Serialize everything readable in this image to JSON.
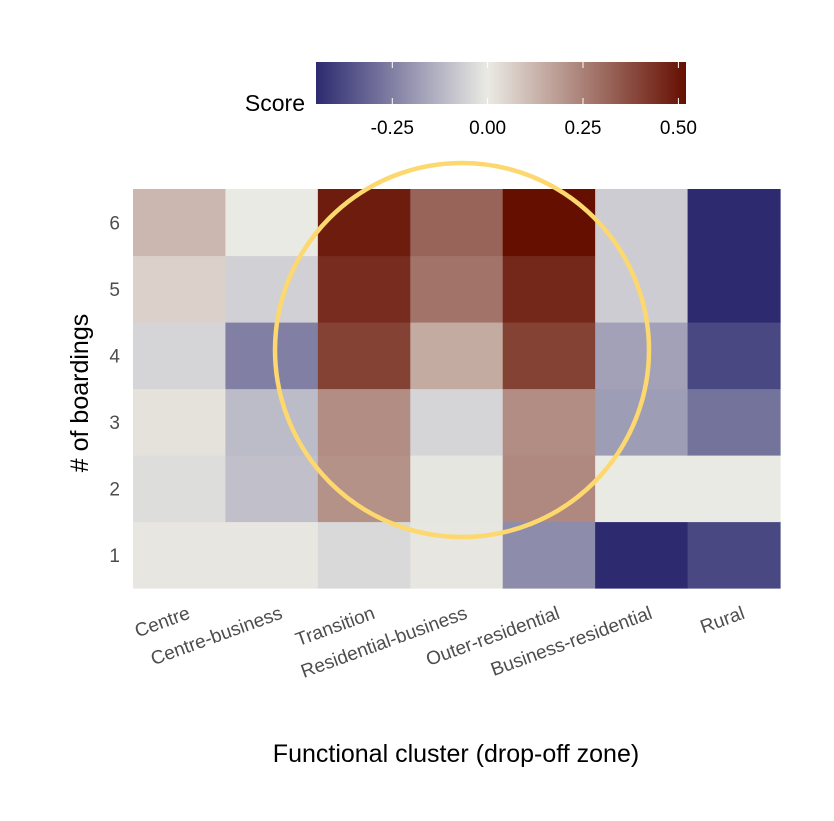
{
  "chart_data": {
    "type": "heatmap",
    "title": "",
    "xlabel": "Functional cluster (drop-off zone)",
    "ylabel": "# of boardings",
    "categories": [
      "Centre",
      "Centre-business",
      "Transition",
      "Residential-business",
      "Outer-residential",
      "Business-residential",
      "Rural"
    ],
    "y": [
      "1",
      "2",
      "3",
      "4",
      "5",
      "6"
    ],
    "values": [
      [
        0.01,
        0.01,
        -0.04,
        0.01,
        -0.22,
        -0.5,
        -0.38
      ],
      [
        -0.03,
        -0.1,
        0.21,
        -0.01,
        0.23,
        0.0,
        0.0
      ],
      [
        0.02,
        -0.11,
        0.22,
        -0.05,
        0.22,
        -0.18,
        -0.28
      ],
      [
        -0.05,
        -0.25,
        0.4,
        0.15,
        0.4,
        -0.17,
        -0.38
      ],
      [
        0.06,
        -0.06,
        0.45,
        0.28,
        0.46,
        -0.07,
        -0.48
      ],
      [
        0.12,
        0.0,
        0.49,
        0.32,
        0.52,
        -0.07,
        -0.48
      ]
    ],
    "legend": {
      "title": "Score",
      "ticks": [
        "-0.25",
        "0.00",
        "0.25",
        "0.50"
      ],
      "tick_values": [
        -0.25,
        0.0,
        0.25,
        0.5
      ],
      "range": [
        -0.45,
        0.52
      ],
      "placement": "top"
    },
    "colors": {
      "low": "#2d2a70",
      "mid": "#eaeae4",
      "high": "#650f00",
      "highlight": "#fcd86e"
    },
    "annotations": [
      {
        "shape": "circle",
        "label": ""
      }
    ]
  }
}
